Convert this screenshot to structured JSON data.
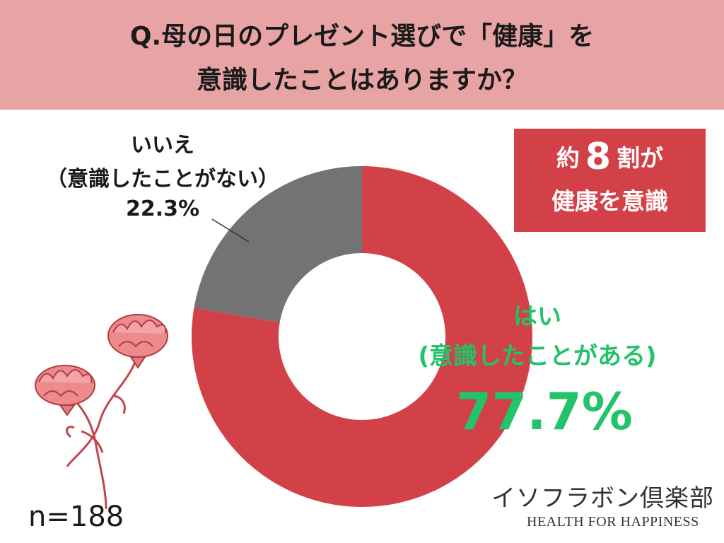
{
  "question": {
    "line1": "Q.母の日のプレゼント選びで「健康」を",
    "line2": "意識したことはありますか？"
  },
  "callout": {
    "prefix": "約",
    "number": "8",
    "suffix": "割が",
    "line2": "健康を意識"
  },
  "chart_data": {
    "type": "pie",
    "donut": true,
    "categories": [
      "はい(意識したことがある)",
      "いいえ(意識したことがない)"
    ],
    "values": [
      77.7,
      22.3
    ],
    "colors": [
      "#d24148",
      "#737373"
    ],
    "labels": {
      "yes": {
        "line1": "はい",
        "line2": "(意識したことがある)",
        "value": "77.7%",
        "color": "#22c36a"
      },
      "no": {
        "line1": "いいえ",
        "line2": "（意識したことがない）",
        "value": "22.3%"
      }
    }
  },
  "sample": "n=188",
  "brand": {
    "name": "イソフラボン倶楽部",
    "tagline": "HEALTH FOR HAPPINESS"
  },
  "colors": {
    "header_bg": "#e8a3a5",
    "accent_red": "#d24148",
    "gray": "#737373",
    "green": "#22c36a"
  },
  "decoration": "carnation-illustration"
}
